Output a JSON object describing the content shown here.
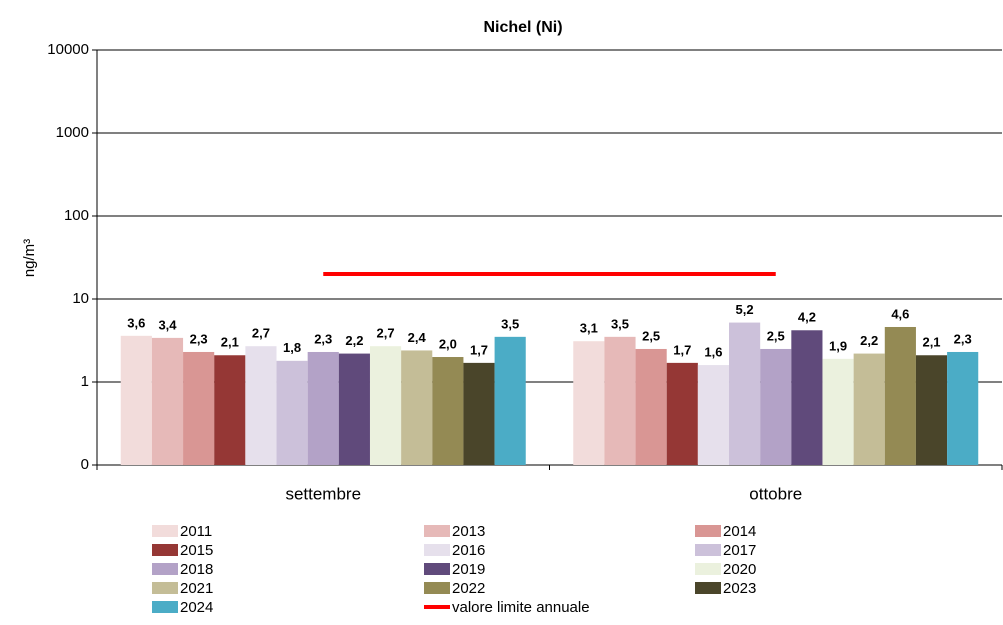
{
  "chart_data": {
    "type": "bar",
    "title": "Nichel (Ni)",
    "y_label": "ng/m³",
    "log_scale": true,
    "grid": true,
    "categories": [
      "settembre",
      "ottobre"
    ],
    "ylim": [
      0.1,
      10000
    ],
    "yticks": [
      {
        "value": 0.1,
        "label": "0"
      },
      1,
      10,
      100,
      1000,
      10000
    ],
    "series": [
      {
        "name": "2011",
        "color": "#f2dcdb",
        "values": [
          3.6,
          3.1
        ],
        "value_labels": [
          "3,6",
          "3,1"
        ]
      },
      {
        "name": "2013",
        "color": "#e6b9b8",
        "values": [
          3.4,
          3.5
        ],
        "value_labels": [
          "3,4",
          "3,5"
        ]
      },
      {
        "name": "2014",
        "color": "#d99694",
        "values": [
          2.3,
          2.5
        ],
        "value_labels": [
          "2,3",
          "2,5"
        ]
      },
      {
        "name": "2015",
        "color": "#953735",
        "values": [
          2.1,
          1.7
        ],
        "value_labels": [
          "2,1",
          "1,7"
        ]
      },
      {
        "name": "2016",
        "color": "#e6e0ec",
        "values": [
          2.7,
          1.6
        ],
        "value_labels": [
          "2,7",
          "1,6"
        ]
      },
      {
        "name": "2017",
        "color": "#ccc1da",
        "values": [
          1.8,
          5.2
        ],
        "value_labels": [
          "1,8",
          "5,2"
        ]
      },
      {
        "name": "2018",
        "color": "#b3a2c7",
        "values": [
          2.3,
          2.5
        ],
        "value_labels": [
          "2,3",
          "2,5"
        ]
      },
      {
        "name": "2019",
        "color": "#604a7b",
        "values": [
          2.2,
          4.2
        ],
        "value_labels": [
          "2,2",
          "4,2"
        ]
      },
      {
        "name": "2020",
        "color": "#ebf1de",
        "values": [
          2.7,
          1.9
        ],
        "value_labels": [
          "2,7",
          "1,9"
        ]
      },
      {
        "name": "2021",
        "color": "#c4bd97",
        "values": [
          2.4,
          2.2
        ],
        "value_labels": [
          "2,4",
          "2,2"
        ]
      },
      {
        "name": "2022",
        "color": "#948a54",
        "values": [
          2.0,
          4.6
        ],
        "value_labels": [
          "2,0",
          "4,6"
        ]
      },
      {
        "name": "2023",
        "color": "#4a452a",
        "values": [
          1.7,
          2.1
        ],
        "value_labels": [
          "1,7",
          "2,1"
        ]
      },
      {
        "name": "2024",
        "color": "#4bacc6",
        "values": [
          3.5,
          2.3
        ],
        "value_labels": [
          "3,5",
          "2,3"
        ]
      },
      {
        "name": "valore limite annuale",
        "color": "#ff0000",
        "type": "line",
        "values": [
          20,
          20
        ]
      }
    ]
  }
}
